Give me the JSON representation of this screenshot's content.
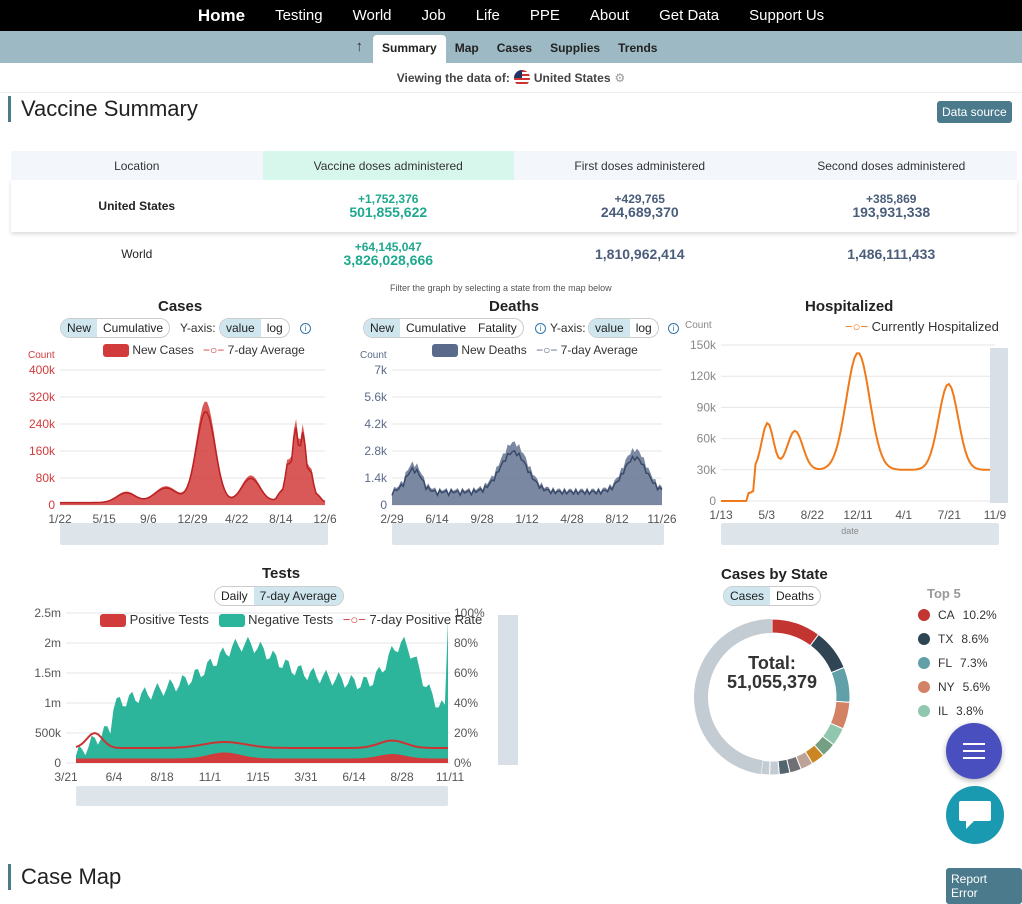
{
  "topnav": {
    "items": [
      "Home",
      "Testing",
      "World",
      "Job",
      "Life",
      "PPE",
      "About",
      "Get Data",
      "Support Us"
    ]
  },
  "subnav": {
    "tabs": [
      "Summary",
      "Map",
      "Cases",
      "Supplies",
      "Trends"
    ]
  },
  "viewing": {
    "label": "Viewing the data of:",
    "country": "United States"
  },
  "vaccine": {
    "title": "Vaccine Summary",
    "data_source": "Data source",
    "headers": [
      "Location",
      "Vaccine doses administered",
      "First doses administered",
      "Second doses administered"
    ],
    "us": {
      "name": "United States",
      "doses_delta": "+1,752,376",
      "doses": "501,855,622",
      "first_delta": "+429,765",
      "first": "244,689,370",
      "second_delta": "+385,869",
      "second": "193,931,338"
    },
    "world": {
      "name": "World",
      "doses_delta": "+64,145,047",
      "doses": "3,826,028,666",
      "first": "1,810,962,414",
      "second": "1,486,111,433"
    }
  },
  "filter_note": "Filter the graph by selecting a state from the map below",
  "cases": {
    "title": "Cases",
    "pill1": [
      "New",
      "Cumulative"
    ],
    "yaxis": "Y-axis:",
    "pill2": [
      "value",
      "log"
    ],
    "count": "Count",
    "legend": [
      "New Cases",
      "7-day Average"
    ],
    "yticks": [
      "400k",
      "320k",
      "240k",
      "160k",
      "80k",
      "0"
    ],
    "xticks": [
      "1/22",
      "5/15",
      "9/6",
      "12/29",
      "4/22",
      "8/14",
      "12/6"
    ]
  },
  "deaths": {
    "title": "Deaths",
    "pill1": [
      "New",
      "Cumulative",
      "Fatality"
    ],
    "yaxis": "Y-axis:",
    "pill2": [
      "value",
      "log"
    ],
    "count": "Count",
    "legend": [
      "New Deaths",
      "7-day Average"
    ],
    "yticks": [
      "7k",
      "5.6k",
      "4.2k",
      "2.8k",
      "1.4k",
      "0"
    ],
    "xticks": [
      "2/29",
      "6/14",
      "9/28",
      "1/12",
      "4/28",
      "8/12",
      "11/26"
    ]
  },
  "hosp": {
    "title": "Hospitalized",
    "legend": "Currently Hospitalized",
    "count": "Count",
    "yticks": [
      "150k",
      "120k",
      "90k",
      "60k",
      "30k",
      "0"
    ],
    "xticks": [
      "1/13",
      "5/3",
      "8/22",
      "12/11",
      "4/1",
      "7/21",
      "11/9"
    ],
    "xlabel": "date"
  },
  "tests": {
    "title": "Tests",
    "pill": [
      "Daily",
      "7-day Average"
    ],
    "legend": [
      "Positive Tests",
      "Negative Tests",
      "7-day Positive Rate"
    ],
    "yticks": [
      "2.5m",
      "2m",
      "1.5m",
      "1m",
      "500k",
      "0"
    ],
    "yticks2": [
      "100%",
      "80%",
      "60%",
      "40%",
      "20%",
      "0%"
    ],
    "xticks": [
      "3/21",
      "6/4",
      "8/18",
      "11/1",
      "1/15",
      "3/31",
      "6/14",
      "8/28",
      "11/11"
    ]
  },
  "state": {
    "title": "Cases by State",
    "pill": [
      "Cases",
      "Deaths"
    ],
    "total_label": "Total:",
    "total": "51,055,379",
    "top5_title": "Top 5",
    "top5": [
      {
        "s": "CA",
        "p": "10.2%",
        "c": "#c23531"
      },
      {
        "s": "TX",
        "p": "8.6%",
        "c": "#2f4554"
      },
      {
        "s": "FL",
        "p": "7.3%",
        "c": "#61a0a8"
      },
      {
        "s": "NY",
        "p": "5.6%",
        "c": "#d48265"
      },
      {
        "s": "IL",
        "p": "3.8%",
        "c": "#91c7ae"
      }
    ]
  },
  "casemap": {
    "title": "Case Map",
    "report": "Report Error"
  },
  "colors": {
    "accent": "#4a7a8c",
    "cases": "#d23b3b",
    "deaths": "#5a6a8a",
    "hosp": "#f07a1a",
    "neg": "#2cb59b"
  }
}
